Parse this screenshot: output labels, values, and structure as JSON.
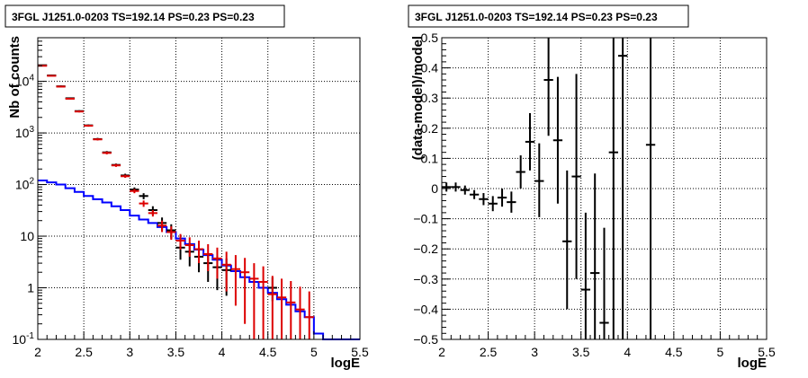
{
  "chart_data": [
    {
      "type": "scatter",
      "title": "3FGL J1251.0-0203 TS=192.14 PS=0.23 PS=0.23",
      "xlabel": "logE",
      "ylabel": "Nb of counts",
      "xlim": [
        2,
        5.5
      ],
      "ylim": [
        0.1,
        70000
      ],
      "ylog": true,
      "grid": true,
      "x_ticks": [
        2,
        2.5,
        3,
        3.5,
        4,
        4.5,
        5,
        5.5
      ],
      "x_tick_labels": [
        "2",
        "2.5",
        "3",
        "3.5",
        "4",
        "4.5",
        "5",
        "5.5"
      ],
      "y_ticks": [
        0.1,
        1,
        10,
        100,
        1000,
        10000
      ],
      "y_tick_labels": [
        {
          "base": "10",
          "exp": "-1"
        },
        {
          "base": "1",
          "exp": ""
        },
        {
          "base": "10",
          "exp": ""
        },
        {
          "base": "10",
          "exp": "2"
        },
        {
          "base": "10",
          "exp": "3"
        },
        {
          "base": "10",
          "exp": "4"
        }
      ],
      "series": [
        {
          "style": "step",
          "color": "#0000ff",
          "bin_width": 0.1,
          "x": [
            2.0,
            2.1,
            2.2,
            2.3,
            2.4,
            2.5,
            2.6,
            2.7,
            2.8,
            2.9,
            3.0,
            3.1,
            3.2,
            3.3,
            3.4,
            3.5,
            3.6,
            3.7,
            3.8,
            3.9,
            4.0,
            4.1,
            4.2,
            4.3,
            4.4,
            4.5,
            4.6,
            4.7,
            4.8,
            4.9,
            5.0,
            5.1,
            5.2,
            5.3,
            5.4
          ],
          "y": [
            120,
            110,
            100,
            85,
            72,
            60,
            52,
            45,
            38,
            32,
            25,
            21,
            18,
            15,
            12,
            9,
            7,
            5.5,
            4.3,
            3.5,
            2.7,
            2.1,
            1.6,
            1.3,
            1.0,
            0.8,
            0.6,
            0.47,
            0.35,
            0.27,
            0.13,
            0.1,
            0.1,
            0.1,
            0.1
          ]
        },
        {
          "style": "error",
          "color": "#000000",
          "x": [
            2.05,
            2.15,
            2.25,
            2.35,
            2.45,
            2.55,
            2.65,
            2.75,
            2.85,
            2.95,
            3.05,
            3.15,
            3.25,
            3.35,
            3.45,
            3.55,
            3.65,
            3.75,
            3.85,
            3.95,
            4.05,
            4.55
          ],
          "y": [
            20500,
            13000,
            8000,
            4700,
            2650,
            1400,
            760,
            420,
            240,
            150,
            80,
            60,
            32,
            18,
            13,
            6,
            5,
            4,
            3,
            2.5,
            2.2,
            1.0
          ],
          "ylow": [
            20000,
            12600,
            7700,
            4550,
            2550,
            1340,
            720,
            395,
            225,
            138,
            72,
            52,
            26,
            13,
            9,
            3.5,
            2.6,
            2.0,
            1.3,
            0.9,
            0.7,
            0.55
          ],
          "yhigh": [
            21000,
            13400,
            8300,
            4850,
            2750,
            1460,
            800,
            445,
            255,
            162,
            88,
            68,
            38,
            23,
            17,
            8.5,
            7.4,
            6.0,
            4.7,
            4.1,
            3.7,
            1.6
          ]
        },
        {
          "style": "error",
          "color": "#dd0000",
          "x": [
            2.05,
            2.15,
            2.25,
            2.35,
            2.45,
            2.55,
            2.65,
            2.75,
            2.85,
            2.95,
            3.05,
            3.15,
            3.25,
            3.35,
            3.45,
            3.55,
            3.65,
            3.75,
            3.85,
            3.95,
            4.05,
            4.15,
            4.25,
            4.35,
            4.45,
            4.55,
            4.65,
            4.75,
            4.85,
            4.95
          ],
          "y": [
            20000,
            12800,
            7900,
            4600,
            2600,
            1380,
            750,
            410,
            235,
            145,
            75,
            43,
            28,
            16,
            12,
            8.2,
            6.7,
            5.6,
            4.5,
            3.7,
            2.8,
            2.3,
            2.0,
            1.5,
            1.3,
            0.75,
            0.65,
            0.52,
            0.38,
            0.27
          ],
          "ylow": [
            19600,
            12500,
            7700,
            4450,
            2500,
            1320,
            715,
            385,
            220,
            135,
            68,
            37,
            24,
            12,
            8.5,
            5.5,
            4.0,
            3.0,
            2.1,
            1.5,
            0.85,
            0.45,
            0.2,
            0.1,
            0.1,
            0.1,
            0.1,
            0.1,
            0.1,
            0.1
          ],
          "yhigh": [
            20400,
            13100,
            8100,
            4750,
            2700,
            1440,
            785,
            435,
            250,
            155,
            82,
            49,
            32,
            20,
            15.5,
            11,
            9.5,
            8.2,
            7.0,
            6.0,
            5.0,
            4.3,
            3.8,
            3.0,
            2.6,
            1.7,
            1.5,
            1.35,
            1.05,
            0.85
          ]
        }
      ]
    },
    {
      "type": "scatter",
      "title": "3FGL J1251.0-0203 TS=192.14 PS=0.23 PS=0.23",
      "xlabel": "logE",
      "ylabel": "(data-model)/model",
      "xlim": [
        2,
        5.5
      ],
      "ylim": [
        -0.5,
        0.5
      ],
      "grid": true,
      "x_ticks": [
        2,
        2.5,
        3,
        3.5,
        4,
        4.5,
        5,
        5.5
      ],
      "x_tick_labels": [
        "2",
        "2.5",
        "3",
        "3.5",
        "4",
        "4.5",
        "5",
        "5.5"
      ],
      "y_ticks": [
        -0.5,
        -0.4,
        -0.3,
        -0.2,
        -0.1,
        0,
        0.1,
        0.2,
        0.3,
        0.4,
        0.5
      ],
      "y_tick_labels": [
        "−0.5",
        "−0.4",
        "−0.3",
        "−0.2",
        "−0.1",
        "0",
        "0.1",
        "0.2",
        "0.3",
        "0.4",
        "0.5"
      ],
      "series": [
        {
          "style": "error",
          "color": "#000000",
          "x": [
            2.05,
            2.15,
            2.25,
            2.35,
            2.45,
            2.55,
            2.65,
            2.75,
            2.85,
            2.95,
            3.05,
            3.15,
            3.25,
            3.35,
            3.45,
            3.55,
            3.65,
            3.75,
            3.85,
            3.95,
            4.25
          ],
          "y": [
            0.005,
            0.005,
            -0.005,
            -0.02,
            -0.035,
            -0.05,
            -0.03,
            -0.045,
            0.055,
            0.155,
            0.025,
            0.36,
            0.16,
            -0.175,
            0.04,
            -0.335,
            -0.28,
            -0.445,
            0.12,
            0.44,
            0.145
          ],
          "ylow": [
            -0.01,
            -0.01,
            -0.02,
            -0.035,
            -0.055,
            -0.075,
            -0.06,
            -0.08,
            0.0,
            0.06,
            -0.095,
            0.175,
            -0.05,
            -0.4,
            -0.3,
            -0.6,
            -0.6,
            -0.6,
            -0.6,
            -0.6,
            -0.6
          ],
          "yhigh": [
            0.02,
            0.02,
            0.01,
            -0.005,
            -0.015,
            -0.025,
            0.0,
            -0.01,
            0.11,
            0.25,
            0.15,
            0.6,
            0.37,
            0.06,
            0.38,
            -0.08,
            0.05,
            -0.13,
            0.6,
            0.6,
            0.6
          ]
        }
      ]
    }
  ]
}
